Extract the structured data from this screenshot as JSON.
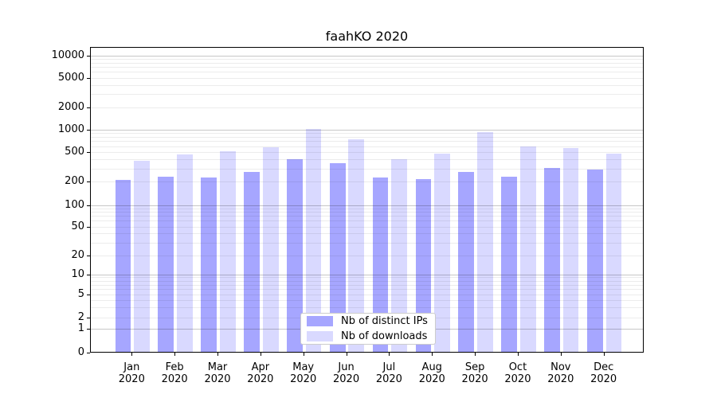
{
  "figure": {
    "title": "faahKO 2020"
  },
  "legend": {
    "items": [
      {
        "label": "Nb of distinct IPs",
        "series_key": "distinct_ips"
      },
      {
        "label": "Nb of downloads",
        "series_key": "downloads"
      }
    ]
  },
  "colors": {
    "distinct_ips": "#a6a6ff",
    "downloads": "#d9d9ff",
    "axis": "#000000",
    "legend_border": "#cccccc"
  },
  "chart_data": {
    "type": "bar",
    "title": "faahKO 2020",
    "categories": [
      "Jan 2020",
      "Feb 2020",
      "Mar 2020",
      "Apr 2020",
      "May 2020",
      "Jun 2020",
      "Jul 2020",
      "Aug 2020",
      "Sep 2020",
      "Oct 2020",
      "Nov 2020",
      "Dec 2020"
    ],
    "x_tick_line1": [
      "Jan",
      "Feb",
      "Mar",
      "Apr",
      "May",
      "Jun",
      "Jul",
      "Aug",
      "Sep",
      "Oct",
      "Nov",
      "Dec"
    ],
    "x_tick_line2": [
      "2020",
      "2020",
      "2020",
      "2020",
      "2020",
      "2020",
      "2020",
      "2020",
      "2020",
      "2020",
      "2020",
      "2020"
    ],
    "series": [
      {
        "name": "Nb of distinct IPs",
        "values": [
          210,
          235,
          224,
          268,
          398,
          350,
          225,
          213,
          268,
          233,
          303,
          288
        ]
      },
      {
        "name": "Nb of downloads",
        "values": [
          380,
          468,
          510,
          580,
          1030,
          740,
          403,
          480,
          930,
          595,
          560,
          480
        ]
      }
    ],
    "xlabel": "",
    "ylabel": "",
    "yscale": "symlog",
    "y_ticks": [
      0,
      1,
      2,
      5,
      10,
      20,
      50,
      100,
      200,
      500,
      1000,
      2000,
      5000,
      10000
    ],
    "y_tick_labels": [
      "0",
      "1",
      "2",
      "5",
      "10",
      "20",
      "50",
      "100",
      "200",
      "500",
      "1000",
      "2000",
      "5000",
      "10000"
    ],
    "ylim": [
      0,
      14000
    ],
    "grid": true,
    "grid_on_top_of_bars": true,
    "legend_position": "inside lower-center"
  }
}
